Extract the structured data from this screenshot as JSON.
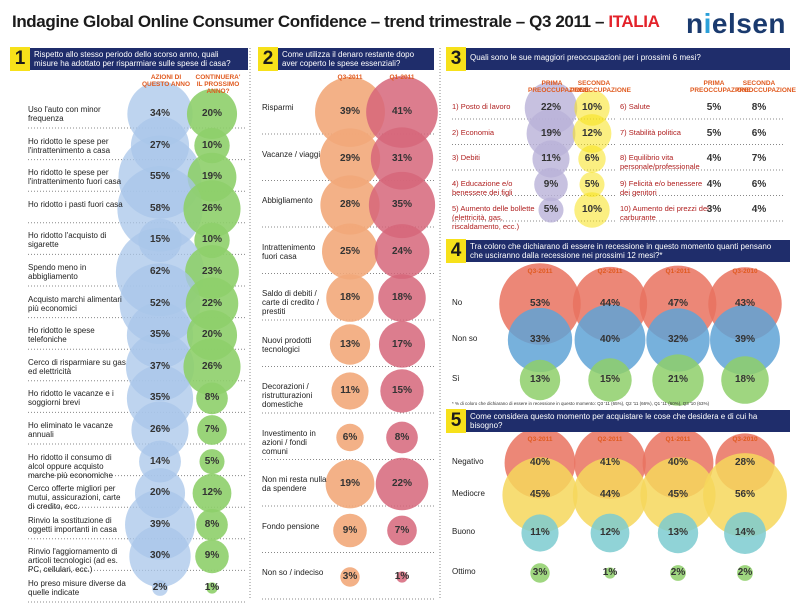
{
  "header": {
    "title_main": "Indagine Global Online Consumer Confidence – trend trimestrale – Q3 2011 – ",
    "title_accent": "ITALIA",
    "logo": "nielsen"
  },
  "colors": {
    "blue": "#a8c6ea",
    "blue_dark": "#5fa3d6",
    "green": "#8ecf6a",
    "orange": "#f2a97a",
    "red": "#d6667a",
    "coral": "#e9725f",
    "yellow": "#f6d75c",
    "teal": "#7dcbd0",
    "purple": "#b9b2d8",
    "lavender": "#c8c4e6",
    "navy": "#1f2d6b",
    "accent": "#f7e11a"
  },
  "q1": {
    "num": "1",
    "title": "Rispetto allo stesso periodo dello scorso anno, quali misure ha adottato per risparmiare sulle spese di casa?",
    "col1": "AZIONI DI QUESTO ANNO",
    "col2": "CONTINUERA' IL PROSSIMO ANNO?"
  },
  "q2": {
    "num": "2",
    "title": "Come utilizza il denaro restante dopo aver coperto le spese essenziali?",
    "col1": "Q3-2011",
    "col2": "Q1-2011"
  },
  "q3": {
    "num": "3",
    "title": "Quali sono le sue maggiori preoccupazioni per i prossimi 6 mesi?",
    "prima": "PRIMA PREOCCUPAZIONE",
    "seconda": "SECONDA PREOCCUPAZIONE"
  },
  "q4": {
    "num": "4",
    "title": "Tra coloro che dichiarano di essere in recessione in questo momento quanti pensano che usciranno dalla recessione nei prossimi 12 mesi?*",
    "footnote": "* % di coloro che dichiarano di essere in recessione in questo momento: Q3 '11 (65%), Q2 '11 (66%), Q1 '11 (60%), Q3 '10 (63%)"
  },
  "q5": {
    "num": "5",
    "title": "Come considera questo momento per acquistare le cose che desidera e di cui ha bisogno?"
  },
  "chart_data": [
    {
      "type": "bubble",
      "id": "q1",
      "title": "Rispetto allo stesso periodo dello scorso anno, quali misure ha adottato per risparmiare sulle spese di casa?",
      "categories": [
        "Uso l'auto con minor frequenza",
        "Ho ridotto le spese per l'intrattenimento a casa",
        "Ho ridotto le spese per l'intrattenimento fuori casa",
        "Ho ridotto i pasti fuori casa",
        "Ho ridotto l'acquisto di sigarette",
        "Spendo meno in abbigliamento",
        "Acquisto marchi alimentari più economici",
        "Ho ridotto le spese telefoniche",
        "Cerco di risparmiare su gas ed elettricità",
        "Ho ridotto le vacanze e i soggiorni brevi",
        "Ho eliminato le vacanze annuali",
        "Ho ridotto il consumo di alcol oppure acquisto marche più economiche",
        "Cerco offerte migliori per mutui, assicurazioni, carte di credito, ecc.",
        "Rinvio la sostituzione di oggetti importanti in casa",
        "Rinvio l'aggiornamento di articoli tecnologici (ad es. PC, cellulari, ecc.)",
        "Ho preso misure diverse da quelle indicate"
      ],
      "series": [
        {
          "name": "AZIONI DI QUESTO ANNO",
          "values": [
            34,
            27,
            55,
            58,
            15,
            62,
            52,
            35,
            37,
            35,
            26,
            14,
            20,
            39,
            30,
            2
          ]
        },
        {
          "name": "CONTINUERA' IL PROSSIMO ANNO?",
          "values": [
            20,
            10,
            19,
            26,
            10,
            23,
            22,
            20,
            26,
            8,
            7,
            5,
            12,
            8,
            9,
            1
          ]
        }
      ]
    },
    {
      "type": "bubble",
      "id": "q2",
      "title": "Come utilizza il denaro restante dopo aver coperto le spese essenziali?",
      "categories": [
        "Risparmi",
        "Vacanze / viaggi",
        "Abbigliamento",
        "Intrattenimento fuori casa",
        "Saldo di debiti / carte di credito / prestiti",
        "Nuovi prodotti tecnologici",
        "Decorazioni / ristrutturazioni domestiche",
        "Investimento in azioni / fondi comuni",
        "Non mi resta nulla da spendere",
        "Fondo pensione",
        "Non so / indeciso"
      ],
      "series": [
        {
          "name": "Q3-2011",
          "values": [
            39,
            29,
            28,
            25,
            18,
            13,
            11,
            6,
            19,
            9,
            3
          ]
        },
        {
          "name": "Q1-2011",
          "values": [
            41,
            31,
            35,
            24,
            18,
            17,
            15,
            8,
            22,
            7,
            1
          ]
        }
      ]
    },
    {
      "type": "bubble",
      "id": "q3",
      "title": "Quali sono le sue maggiori preoccupazioni per i prossimi 6 mesi?",
      "categories": [
        "1) Posto di lavoro",
        "2) Economia",
        "3) Debiti",
        "4) Educazione e/o benessere dei figli",
        "5) Aumento delle bollette (elettricità, gas, riscaldamento, ecc.)",
        "6) Salute",
        "7) Stabilità politica",
        "8) Equilibrio vita personale/professionale",
        "9) Felicità e/o benessere dei genitori",
        "10) Aumento dei prezzi del carburante"
      ],
      "series": [
        {
          "name": "PRIMA PREOCCUPAZIONE",
          "values": [
            22,
            19,
            11,
            9,
            5,
            5,
            5,
            4,
            4,
            3
          ]
        },
        {
          "name": "SECONDA PREOCCUPAZIONE",
          "values": [
            10,
            12,
            6,
            5,
            10,
            8,
            6,
            7,
            6,
            4
          ]
        }
      ]
    },
    {
      "type": "bubble",
      "id": "q4",
      "title": "Tra coloro che dichiarano di essere in recessione in questo momento quanti pensano che usciranno dalla recessione nei prossimi 12 mesi?*",
      "x": [
        "Q3-2011",
        "Q2-2011",
        "Q1-2011",
        "Q3-2010"
      ],
      "series": [
        {
          "name": "No",
          "values": [
            53,
            44,
            47,
            43
          ]
        },
        {
          "name": "Non so",
          "values": [
            33,
            40,
            32,
            39
          ]
        },
        {
          "name": "Sì",
          "values": [
            13,
            15,
            21,
            18
          ]
        }
      ]
    },
    {
      "type": "bubble",
      "id": "q5",
      "title": "Come considera questo momento per acquistare le cose che desidera e di cui ha bisogno?",
      "x": [
        "Q3-2011",
        "Q2-2011",
        "Q1-2011",
        "Q3-2010"
      ],
      "series": [
        {
          "name": "Negativo",
          "values": [
            40,
            41,
            40,
            28
          ]
        },
        {
          "name": "Mediocre",
          "values": [
            45,
            44,
            45,
            56
          ]
        },
        {
          "name": "Buono",
          "values": [
            11,
            12,
            13,
            14
          ]
        },
        {
          "name": "Ottimo",
          "values": [
            3,
            1,
            2,
            2
          ]
        }
      ]
    }
  ]
}
